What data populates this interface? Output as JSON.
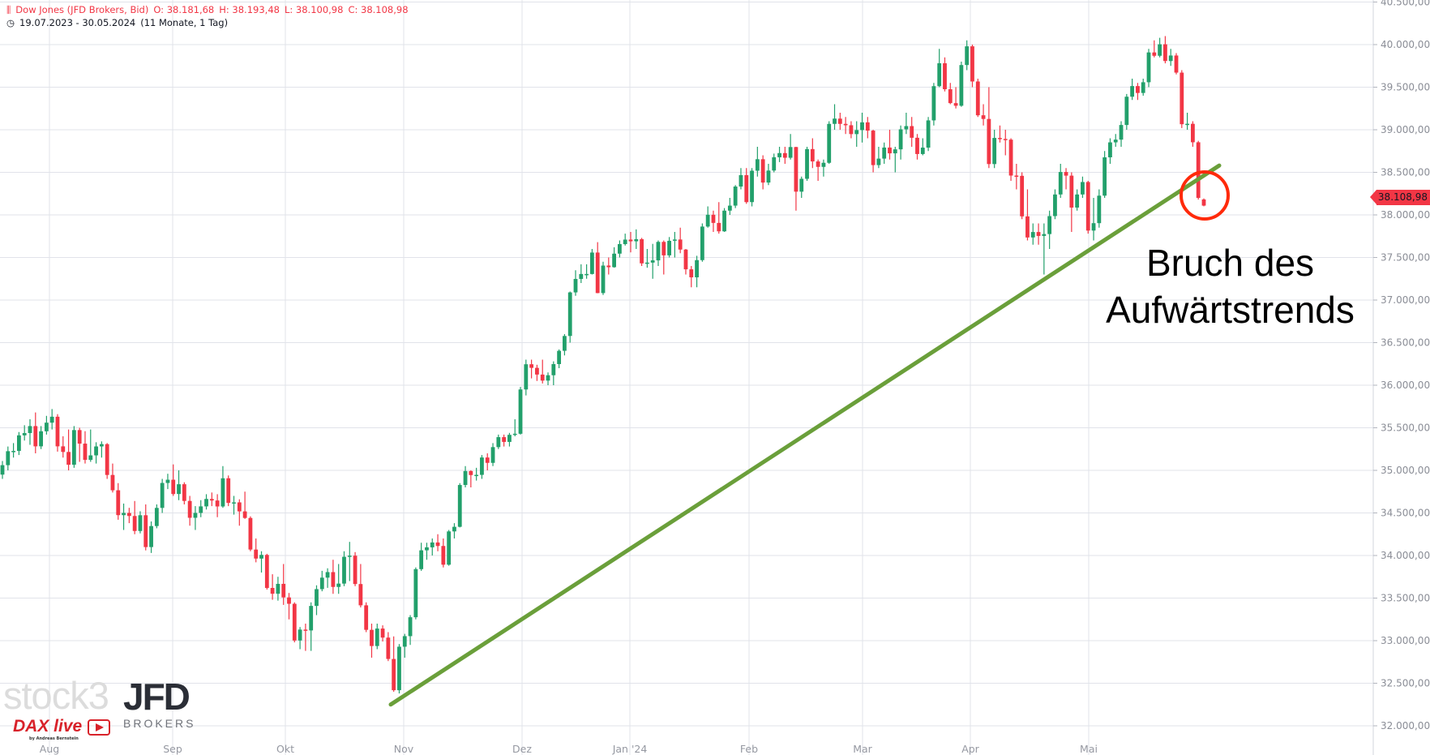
{
  "header": {
    "icon": "candlestick-chart-icon",
    "instrument": "Dow Jones (JFD Brokers, Bid)",
    "open": "O: 38.181,68",
    "high": "H: 38.193,48",
    "low": "L: 38.100,98",
    "close": "C: 38.108,98",
    "clock_icon": "clock-icon",
    "range": "19.07.2023 - 30.05.2024",
    "period": "(11 Monate, 1 Tag)"
  },
  "annotation": {
    "line1": "Bruch des",
    "line2": "Aufwärtstrends"
  },
  "last_price_label": "38.108,98",
  "logos": {
    "stock3": "stock3",
    "jfd": "JFD",
    "brokers": "BROKERS",
    "dax_live": "DAX live",
    "dax_by": "by Andreas Bernstein"
  },
  "colors": {
    "up": "#22a06b",
    "down": "#f23645",
    "trendline": "#6a9f3a",
    "circle": "#ff2a0a",
    "grid": "#e1e3ea"
  },
  "chart_data": {
    "type": "candlestick",
    "title": "Dow Jones (JFD Brokers, Bid)",
    "date_range": "19.07.2023 - 30.05.2024",
    "ylim": [
      32000,
      40500
    ],
    "grid": true,
    "y_ticks": [
      "32.000,00",
      "32.500,00",
      "33.000,00",
      "33.500,00",
      "34.000,00",
      "34.500,00",
      "35.000,00",
      "35.500,00",
      "36.000,00",
      "36.500,00",
      "37.000,00",
      "37.500,00",
      "38.000,00",
      "38.500,00",
      "39.000,00",
      "39.500,00",
      "40.000,00",
      "40.500,00"
    ],
    "x_ticks": [
      "Aug",
      "Sep",
      "Okt",
      "Nov",
      "Dez",
      "Jan '24",
      "Feb",
      "Mar",
      "Apr",
      "Mai"
    ],
    "trendline": {
      "start_price": 32250,
      "end_price": 38580,
      "color": "green"
    },
    "candles_ohlc": [
      [
        34950,
        35110,
        34900,
        35061
      ],
      [
        35061,
        35280,
        35000,
        35225
      ],
      [
        35225,
        35320,
        35150,
        35228
      ],
      [
        35228,
        35450,
        35180,
        35411
      ],
      [
        35411,
        35530,
        35350,
        35438
      ],
      [
        35438,
        35600,
        35300,
        35520
      ],
      [
        35520,
        35680,
        35200,
        35282
      ],
      [
        35282,
        35520,
        35250,
        35459
      ],
      [
        35459,
        35640,
        35420,
        35560
      ],
      [
        35560,
        35720,
        35480,
        35630
      ],
      [
        35630,
        35660,
        35220,
        35282
      ],
      [
        35282,
        35400,
        35150,
        35216
      ],
      [
        35216,
        35480,
        35000,
        35066
      ],
      [
        35066,
        35520,
        35030,
        35473
      ],
      [
        35473,
        35500,
        35100,
        35314
      ],
      [
        35314,
        35460,
        35080,
        35123
      ],
      [
        35123,
        35480,
        35100,
        35176
      ],
      [
        35176,
        35330,
        35080,
        35281
      ],
      [
        35281,
        35340,
        35150,
        35308
      ],
      [
        35308,
        35320,
        34900,
        34946
      ],
      [
        34946,
        35080,
        34740,
        34766
      ],
      [
        34766,
        34850,
        34420,
        34474
      ],
      [
        34474,
        34610,
        34300,
        34500
      ],
      [
        34500,
        34560,
        34380,
        34464
      ],
      [
        34464,
        34640,
        34250,
        34288
      ],
      [
        34288,
        34520,
        34260,
        34473
      ],
      [
        34473,
        34600,
        34060,
        34099
      ],
      [
        34099,
        34400,
        34030,
        34346
      ],
      [
        34346,
        34600,
        34320,
        34559
      ],
      [
        34559,
        34900,
        34500,
        34852
      ],
      [
        34852,
        34960,
        34780,
        34890
      ],
      [
        34890,
        35070,
        34700,
        34722
      ],
      [
        34722,
        35000,
        34650,
        34837
      ],
      [
        34837,
        34860,
        34600,
        34641
      ],
      [
        34641,
        34700,
        34350,
        34443
      ],
      [
        34443,
        34580,
        34300,
        34500
      ],
      [
        34500,
        34650,
        34450,
        34577
      ],
      [
        34577,
        34720,
        34540,
        34664
      ],
      [
        34664,
        34740,
        34580,
        34646
      ],
      [
        34646,
        34720,
        34450,
        34576
      ],
      [
        34576,
        35050,
        34560,
        34907
      ],
      [
        34907,
        34940,
        34580,
        34618
      ],
      [
        34618,
        34700,
        34480,
        34624
      ],
      [
        34624,
        34660,
        34350,
        34518
      ],
      [
        34518,
        34750,
        34430,
        34441
      ],
      [
        34441,
        34460,
        34050,
        34070
      ],
      [
        34070,
        34200,
        33920,
        33964
      ],
      [
        33964,
        34050,
        33800,
        34007
      ],
      [
        34007,
        34020,
        33600,
        33619
      ],
      [
        33619,
        33780,
        33480,
        33551
      ],
      [
        33551,
        33750,
        33470,
        33667
      ],
      [
        33667,
        33900,
        33420,
        33508
      ],
      [
        33508,
        33560,
        33250,
        33433
      ],
      [
        33433,
        33450,
        32980,
        33002
      ],
      [
        33002,
        33160,
        32900,
        33130
      ],
      [
        33130,
        33200,
        32880,
        33120
      ],
      [
        33120,
        33450,
        32880,
        33408
      ],
      [
        33408,
        33650,
        33300,
        33605
      ],
      [
        33605,
        33820,
        33580,
        33740
      ],
      [
        33740,
        33850,
        33620,
        33805
      ],
      [
        33805,
        33950,
        33550,
        33631
      ],
      [
        33631,
        33900,
        33550,
        33670
      ],
      [
        33670,
        34050,
        33640,
        33985
      ],
      [
        33985,
        34160,
        33700,
        33998
      ],
      [
        33998,
        34040,
        33640,
        33665
      ],
      [
        33665,
        33900,
        33390,
        33415
      ],
      [
        33415,
        33450,
        33100,
        33127
      ],
      [
        33127,
        33200,
        32800,
        32937
      ],
      [
        32937,
        33200,
        32900,
        33142
      ],
      [
        33142,
        33180,
        32990,
        33036
      ],
      [
        33036,
        33100,
        32760,
        32785
      ],
      [
        32785,
        33050,
        32400,
        32418
      ],
      [
        32418,
        32960,
        32380,
        32929
      ],
      [
        32929,
        33080,
        32800,
        33053
      ],
      [
        33053,
        33300,
        32950,
        33275
      ],
      [
        33275,
        33860,
        33250,
        33840
      ],
      [
        33840,
        34150,
        33820,
        34061
      ],
      [
        34061,
        34150,
        33950,
        34096
      ],
      [
        34096,
        34200,
        34000,
        34153
      ],
      [
        34153,
        34250,
        34050,
        34112
      ],
      [
        34112,
        34200,
        33860,
        33892
      ],
      [
        33892,
        34300,
        33880,
        34283
      ],
      [
        34283,
        34380,
        34200,
        34337
      ],
      [
        34337,
        34850,
        34330,
        34828
      ],
      [
        34828,
        35050,
        34800,
        34992
      ],
      [
        34992,
        35000,
        34800,
        34945
      ],
      [
        34945,
        35030,
        34880,
        34947
      ],
      [
        34947,
        35180,
        34900,
        35151
      ],
      [
        35151,
        35200,
        35000,
        35088
      ],
      [
        35088,
        35320,
        35050,
        35273
      ],
      [
        35273,
        35420,
        35250,
        35390
      ],
      [
        35390,
        35420,
        35280,
        35334
      ],
      [
        35334,
        35440,
        35280,
        35417
      ],
      [
        35417,
        35600,
        35400,
        35430
      ],
      [
        35430,
        35980,
        35420,
        35950
      ],
      [
        35950,
        36300,
        35880,
        36246
      ],
      [
        36246,
        36300,
        36080,
        36204
      ],
      [
        36204,
        36240,
        36050,
        36125
      ],
      [
        36125,
        36300,
        36020,
        36054
      ],
      [
        36054,
        36150,
        36000,
        36117
      ],
      [
        36117,
        36280,
        36000,
        36248
      ],
      [
        36248,
        36420,
        36200,
        36404
      ],
      [
        36404,
        36600,
        36350,
        36578
      ],
      [
        36578,
        37100,
        36500,
        37090
      ],
      [
        37090,
        37350,
        37050,
        37248
      ],
      [
        37248,
        37420,
        37200,
        37306
      ],
      [
        37306,
        37420,
        37250,
        37306
      ],
      [
        37306,
        37600,
        37300,
        37558
      ],
      [
        37558,
        37680,
        37080,
        37082
      ],
      [
        37082,
        37450,
        37060,
        37405
      ],
      [
        37405,
        37500,
        37300,
        37386
      ],
      [
        37386,
        37620,
        37380,
        37545
      ],
      [
        37545,
        37700,
        37500,
        37657
      ],
      [
        37657,
        37780,
        37640,
        37710
      ],
      [
        37710,
        37800,
        37560,
        37690
      ],
      [
        37690,
        37830,
        37600,
        37715
      ],
      [
        37715,
        37730,
        37400,
        37431
      ],
      [
        37431,
        37600,
        37380,
        37440
      ],
      [
        37440,
        37660,
        37250,
        37466
      ],
      [
        37466,
        37700,
        37400,
        37683
      ],
      [
        37683,
        37700,
        37300,
        37525
      ],
      [
        37525,
        37740,
        37500,
        37696
      ],
      [
        37696,
        37800,
        37500,
        37711
      ],
      [
        37711,
        37850,
        37550,
        37593
      ],
      [
        37593,
        37600,
        37300,
        37361
      ],
      [
        37361,
        37400,
        37150,
        37267
      ],
      [
        37267,
        37520,
        37150,
        37469
      ],
      [
        37469,
        37900,
        37450,
        37863
      ],
      [
        37863,
        38100,
        37850,
        38002
      ],
      [
        38002,
        38050,
        37800,
        37906
      ],
      [
        37906,
        38150,
        37780,
        37807
      ],
      [
        37807,
        38080,
        37800,
        38050
      ],
      [
        38050,
        38200,
        38000,
        38109
      ],
      [
        38109,
        38350,
        38080,
        38333
      ],
      [
        38333,
        38550,
        38300,
        38467
      ],
      [
        38467,
        38550,
        38130,
        38150
      ],
      [
        38150,
        38550,
        38100,
        38519
      ],
      [
        38519,
        38800,
        38450,
        38654
      ],
      [
        38654,
        38700,
        38300,
        38380
      ],
      [
        38380,
        38600,
        38350,
        38521
      ],
      [
        38521,
        38720,
        38500,
        38677
      ],
      [
        38677,
        38800,
        38620,
        38726
      ],
      [
        38726,
        38800,
        38600,
        38671
      ],
      [
        38671,
        38950,
        38650,
        38797
      ],
      [
        38797,
        38800,
        38050,
        38273
      ],
      [
        38273,
        38450,
        38200,
        38424
      ],
      [
        38424,
        38800,
        38400,
        38773
      ],
      [
        38773,
        38900,
        38550,
        38628
      ],
      [
        38628,
        38650,
        38400,
        38564
      ],
      [
        38564,
        38650,
        38450,
        38612
      ],
      [
        38612,
        39100,
        38600,
        39069
      ],
      [
        39069,
        39300,
        39000,
        39131
      ],
      [
        39131,
        39200,
        39000,
        39069
      ],
      [
        39069,
        39150,
        38950,
        39053
      ],
      [
        39053,
        39100,
        38900,
        38949
      ],
      [
        38949,
        39100,
        38800,
        38996
      ],
      [
        38996,
        39200,
        38850,
        39087
      ],
      [
        39087,
        39150,
        38900,
        38990
      ],
      [
        38990,
        39000,
        38500,
        38585
      ],
      [
        38585,
        38800,
        38550,
        38661
      ],
      [
        38661,
        38850,
        38600,
        38791
      ],
      [
        38791,
        39000,
        38650,
        38723
      ],
      [
        38723,
        38800,
        38500,
        38770
      ],
      [
        38770,
        39050,
        38650,
        39005
      ],
      [
        39005,
        39200,
        38950,
        39043
      ],
      [
        39043,
        39150,
        38800,
        38906
      ],
      [
        38906,
        38950,
        38650,
        38715
      ],
      [
        38715,
        38900,
        38700,
        38790
      ],
      [
        38790,
        39150,
        38750,
        39110
      ],
      [
        39110,
        39550,
        39050,
        39512
      ],
      [
        39512,
        39950,
        39500,
        39781
      ],
      [
        39781,
        39850,
        39450,
        39476
      ],
      [
        39476,
        39550,
        39300,
        39313
      ],
      [
        39313,
        39500,
        39250,
        39282
      ],
      [
        39282,
        39800,
        39270,
        39760
      ],
      [
        39760,
        40050,
        39700,
        39980
      ],
      [
        39980,
        40000,
        39500,
        39567
      ],
      [
        39567,
        39600,
        39150,
        39170
      ],
      [
        39170,
        39300,
        39050,
        39127
      ],
      [
        39127,
        39500,
        38550,
        38597
      ],
      [
        38597,
        39000,
        38550,
        38904
      ],
      [
        38904,
        39050,
        38850,
        38892
      ],
      [
        38892,
        39000,
        38700,
        38884
      ],
      [
        38884,
        38900,
        38400,
        38462
      ],
      [
        38462,
        38600,
        38300,
        38459
      ],
      [
        38459,
        38500,
        37950,
        37983
      ],
      [
        37983,
        38300,
        37700,
        37735
      ],
      [
        37735,
        37900,
        37650,
        37799
      ],
      [
        37799,
        37900,
        37650,
        37753
      ],
      [
        37753,
        37900,
        37300,
        37775
      ],
      [
        37775,
        38050,
        37600,
        37986
      ],
      [
        37986,
        38300,
        37950,
        38240
      ],
      [
        38240,
        38600,
        38200,
        38504
      ],
      [
        38504,
        38550,
        38300,
        38461
      ],
      [
        38461,
        38500,
        37800,
        38086
      ],
      [
        38086,
        38300,
        38050,
        38240
      ],
      [
        38240,
        38450,
        38200,
        38386
      ],
      [
        38386,
        38400,
        37780,
        37816
      ],
      [
        37816,
        38200,
        37700,
        37903
      ],
      [
        37903,
        38300,
        37850,
        38226
      ],
      [
        38226,
        38750,
        38200,
        38676
      ],
      [
        38676,
        38900,
        38600,
        38852
      ],
      [
        38852,
        38950,
        38800,
        38884
      ],
      [
        38884,
        39100,
        38800,
        39056
      ],
      [
        39056,
        39420,
        39000,
        39388
      ],
      [
        39388,
        39600,
        39350,
        39513
      ],
      [
        39513,
        39550,
        39350,
        39432
      ],
      [
        39432,
        39600,
        39400,
        39558
      ],
      [
        39558,
        39950,
        39500,
        39908
      ],
      [
        39908,
        40050,
        39850,
        39869
      ],
      [
        39869,
        40080,
        39850,
        40004
      ],
      [
        40004,
        40100,
        39780,
        39807
      ],
      [
        39807,
        39950,
        39750,
        39872
      ],
      [
        39872,
        39900,
        39650,
        39671
      ],
      [
        39671,
        39700,
        39020,
        39065
      ],
      [
        39065,
        39200,
        39000,
        39070
      ],
      [
        39070,
        39100,
        38800,
        38853
      ],
      [
        38853,
        38870,
        38180,
        38200
      ],
      [
        38181.68,
        38193.48,
        38100.98,
        38108.98
      ]
    ]
  }
}
